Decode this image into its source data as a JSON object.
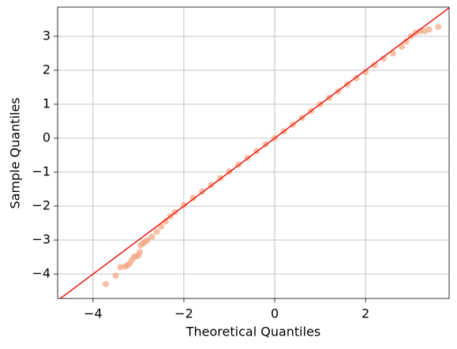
{
  "chart_data": {
    "type": "scatter",
    "x_label": "Theoretical Quantiles",
    "y_label": "Sample Quantiles",
    "xlim": [
      -4.78,
      3.84
    ],
    "ylim": [
      -4.72,
      3.86
    ],
    "xticks": [
      {
        "value": -4,
        "label": "−4"
      },
      {
        "value": -2,
        "label": "−2"
      },
      0,
      2
    ],
    "yticks": [
      {
        "value": -4,
        "label": "−4"
      },
      {
        "value": -3,
        "label": "−3"
      },
      {
        "value": -2,
        "label": "−2"
      },
      {
        "value": -1,
        "label": "−1"
      },
      0,
      1,
      2,
      3
    ],
    "grid": true,
    "color": "#f4a582",
    "reference_line": {
      "slope": 1,
      "intercept": 0,
      "color": "#e8231b"
    },
    "x": [
      -3.72,
      -3.5,
      -3.4,
      -3.3,
      -3.25,
      -3.2,
      -3.15,
      -3.1,
      -3.05,
      -3.0,
      -2.97,
      -2.95,
      -2.9,
      -2.85,
      -2.8,
      -2.7,
      -2.6,
      -2.5,
      -2.4,
      -2.3,
      -2.2,
      -2.0,
      -1.8,
      -1.6,
      -1.4,
      -1.2,
      -1.0,
      -0.8,
      -0.6,
      -0.4,
      -0.2,
      0.0,
      0.2,
      0.4,
      0.6,
      0.8,
      1.0,
      1.2,
      1.4,
      1.6,
      1.8,
      2.0,
      2.2,
      2.4,
      2.6,
      2.8,
      2.9,
      3.0,
      3.1,
      3.2,
      3.3,
      3.4,
      3.6
    ],
    "y": [
      -4.3,
      -4.05,
      -3.8,
      -3.78,
      -3.75,
      -3.7,
      -3.6,
      -3.5,
      -3.48,
      -3.45,
      -3.35,
      -3.15,
      -3.1,
      -3.05,
      -3.0,
      -2.9,
      -2.75,
      -2.6,
      -2.45,
      -2.3,
      -2.18,
      -1.97,
      -1.76,
      -1.57,
      -1.38,
      -1.18,
      -0.98,
      -0.78,
      -0.58,
      -0.38,
      -0.18,
      0.0,
      0.2,
      0.4,
      0.6,
      0.8,
      1.0,
      1.19,
      1.38,
      1.58,
      1.77,
      1.95,
      2.15,
      2.35,
      2.5,
      2.7,
      2.85,
      3.0,
      3.1,
      3.15,
      3.15,
      3.2,
      3.28
    ]
  }
}
